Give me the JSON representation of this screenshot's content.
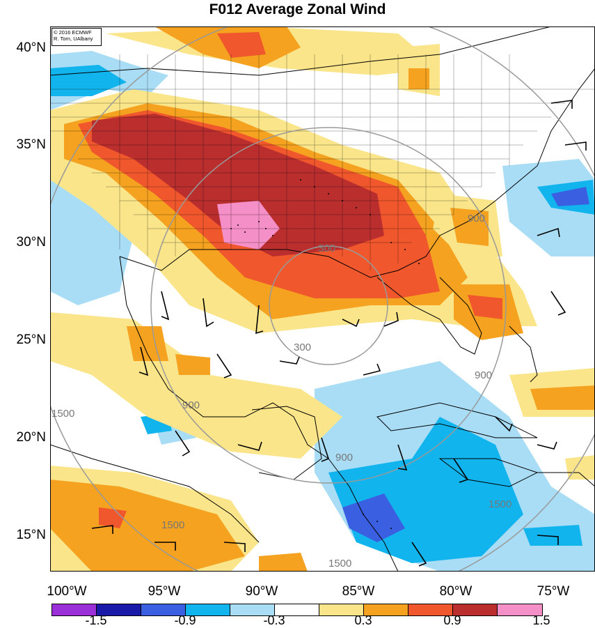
{
  "title": "F012 Average Zonal Wind",
  "credit": {
    "line1": "© 2016 ECMWF",
    "line2": "R. Torn, UAlbany"
  },
  "lat_labels": [
    "40°N",
    "35°N",
    "30°N",
    "25°N",
    "20°N",
    "15°N"
  ],
  "lon_labels": [
    "100°W",
    "95°W",
    "90°W",
    "85°W",
    "80°W",
    "75°W"
  ],
  "range_ring_labels": [
    "300",
    "300",
    "900",
    "900",
    "900",
    "900",
    "1500",
    "1500",
    "1500",
    "1500"
  ],
  "colorbar": {
    "colors": [
      "#9b30d9",
      "#1a1aa8",
      "#3a5fe0",
      "#12b4ee",
      "#a9ddf6",
      "#ffffff",
      "#fbe58a",
      "#f4a21f",
      "#f0572d",
      "#bb2e2e",
      "#f58fc8"
    ],
    "labels": [
      "-1.5",
      "-0.9",
      "-0.3",
      "0.3",
      "0.9",
      "1.5"
    ]
  }
}
